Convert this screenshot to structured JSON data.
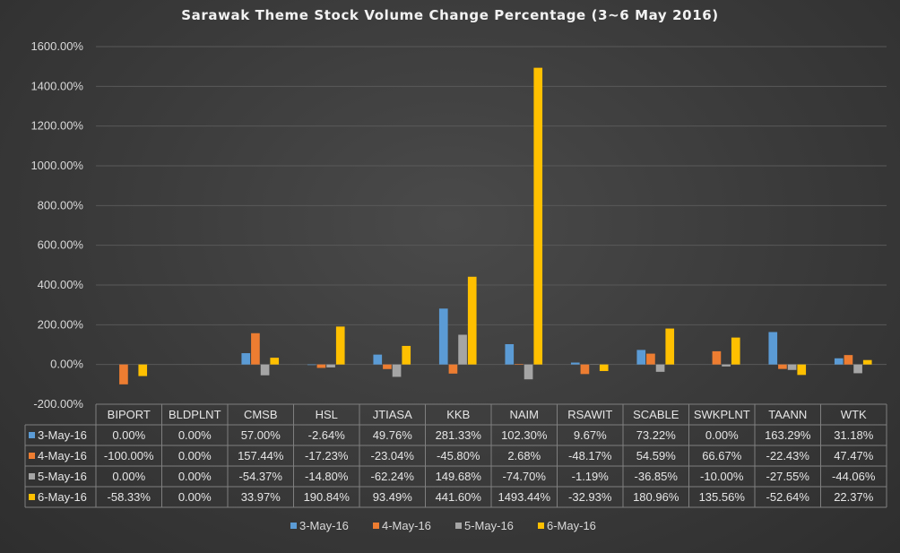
{
  "title": "Sarawak Theme Stock Volume Change Percentage (3~6 May 2016)",
  "colors": {
    "3-May-16": "#5b9bd5",
    "4-May-16": "#ed7d31",
    "5-May-16": "#a5a5a5",
    "6-May-16": "#ffc000",
    "grid": "#595959",
    "table_border": "#7f7f7f",
    "text": "#d9d9d9"
  },
  "chart_data": {
    "type": "bar",
    "title": "Sarawak Theme Stock Volume Change Percentage (3~6 May 2016)",
    "xlabel": "",
    "ylabel": "",
    "ylim": [
      -200,
      1600
    ],
    "yticks": [
      -200,
      0,
      200,
      400,
      600,
      800,
      1000,
      1200,
      1400,
      1600
    ],
    "ytick_labels": [
      "-200.00%",
      "0.00%",
      "200.00%",
      "400.00%",
      "600.00%",
      "800.00%",
      "1000.00%",
      "1200.00%",
      "1400.00%",
      "1600.00%"
    ],
    "grid": true,
    "legend_position": "bottom",
    "categories": [
      "BIPORT",
      "BLDPLNT",
      "CMSB",
      "HSL",
      "JTIASA",
      "KKB",
      "NAIM",
      "RSAWIT",
      "SCABLE",
      "SWKPLNT",
      "TAANN",
      "WTK"
    ],
    "series": [
      {
        "name": "3-May-16",
        "values": [
          0.0,
          0.0,
          57.0,
          -2.64,
          49.76,
          281.33,
          102.3,
          9.67,
          73.22,
          0.0,
          163.29,
          31.18
        ],
        "labels": [
          "0.00%",
          "0.00%",
          "57.00%",
          "-2.64%",
          "49.76%",
          "281.33%",
          "102.30%",
          "9.67%",
          "73.22%",
          "0.00%",
          "163.29%",
          "31.18%"
        ]
      },
      {
        "name": "4-May-16",
        "values": [
          -100.0,
          0.0,
          157.44,
          -17.23,
          -23.04,
          -45.8,
          2.68,
          -48.17,
          54.59,
          66.67,
          -22.43,
          47.47
        ],
        "labels": [
          "-100.00%",
          "0.00%",
          "157.44%",
          "-17.23%",
          "-23.04%",
          "-45.80%",
          "2.68%",
          "-48.17%",
          "54.59%",
          "66.67%",
          "-22.43%",
          "47.47%"
        ]
      },
      {
        "name": "5-May-16",
        "values": [
          0.0,
          0.0,
          -54.37,
          -14.8,
          -62.24,
          149.68,
          -74.7,
          -1.19,
          -36.85,
          -10.0,
          -27.55,
          -44.06
        ],
        "labels": [
          "0.00%",
          "0.00%",
          "-54.37%",
          "-14.80%",
          "-62.24%",
          "149.68%",
          "-74.70%",
          "-1.19%",
          "-36.85%",
          "-10.00%",
          "-27.55%",
          "-44.06%"
        ]
      },
      {
        "name": "6-May-16",
        "values": [
          -58.33,
          0.0,
          33.97,
          190.84,
          93.49,
          441.6,
          1493.44,
          -32.93,
          180.96,
          135.56,
          -52.64,
          22.37
        ],
        "labels": [
          "-58.33%",
          "0.00%",
          "33.97%",
          "190.84%",
          "93.49%",
          "441.60%",
          "1493.44%",
          "-32.93%",
          "180.96%",
          "135.56%",
          "-52.64%",
          "22.37%"
        ]
      }
    ]
  }
}
